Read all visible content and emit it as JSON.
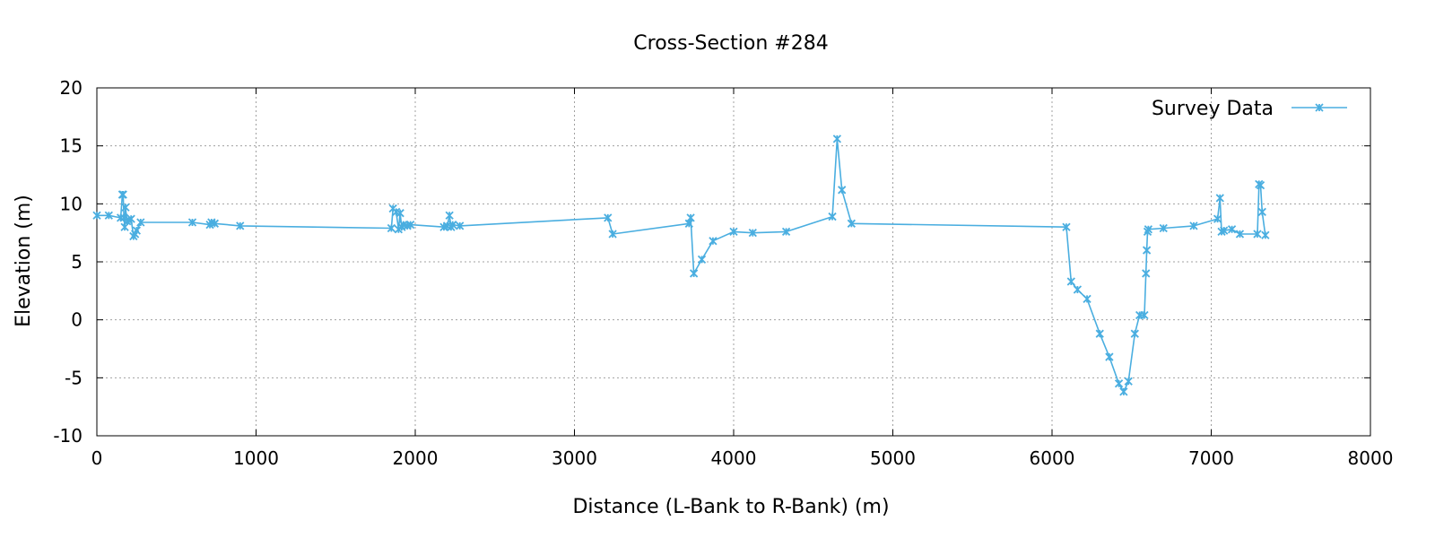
{
  "chart_data": {
    "type": "line",
    "title": "Cross-Section #284",
    "xlabel": "Distance (L-Bank to R-Bank) (m)",
    "ylabel": "Elevation (m)",
    "xlim": [
      0,
      8000
    ],
    "ylim": [
      -10,
      20
    ],
    "xticks": [
      0,
      1000,
      2000,
      3000,
      4000,
      5000,
      6000,
      7000,
      8000
    ],
    "yticks": [
      -10,
      -5,
      0,
      5,
      10,
      15,
      20
    ],
    "xtick_labels": [
      "0",
      "1000",
      "2000",
      "3000",
      "4000",
      "5000",
      "6000",
      "7000",
      "8000"
    ],
    "ytick_labels": [
      "-10",
      "-5",
      "0",
      "5",
      "10",
      "15",
      "20"
    ],
    "grid": true,
    "legend_position": "top-right",
    "line_color": "#4aaee0",
    "series": [
      {
        "name": "Survey Data",
        "x": [
          0,
          75,
          150,
          160,
          165,
          170,
          175,
          180,
          190,
          200,
          215,
          230,
          240,
          250,
          275,
          600,
          710,
          720,
          740,
          900,
          1850,
          1860,
          1880,
          1895,
          1905,
          1915,
          1925,
          1950,
          1970,
          2180,
          2200,
          2215,
          2225,
          2235,
          2280,
          3210,
          3240,
          3720,
          3730,
          3750,
          3800,
          3870,
          4000,
          4120,
          4330,
          4620,
          4650,
          4680,
          4740,
          6090,
          6120,
          6160,
          6220,
          6300,
          6360,
          6420,
          6450,
          6480,
          6520,
          6550,
          6580,
          6590,
          6595,
          6600,
          6605,
          6700,
          6890,
          7040,
          7055,
          7065,
          7080,
          7130,
          7180,
          7290,
          7300,
          7310,
          7320,
          7340
        ],
        "y": [
          9.0,
          9.0,
          8.8,
          10.8,
          10.8,
          8.8,
          8.0,
          9.7,
          8.5,
          8.6,
          8.7,
          7.2,
          7.4,
          7.7,
          8.4,
          8.4,
          8.2,
          8.4,
          8.3,
          8.1,
          7.9,
          9.6,
          9.3,
          7.8,
          9.2,
          8.0,
          8.2,
          8.1,
          8.2,
          8.0,
          8.1,
          9.0,
          8.0,
          8.2,
          8.1,
          8.8,
          7.4,
          8.3,
          8.8,
          4.0,
          5.2,
          6.8,
          7.6,
          7.5,
          7.6,
          8.9,
          15.6,
          11.2,
          8.3,
          8.0,
          3.3,
          2.6,
          1.8,
          -1.2,
          -3.2,
          -5.5,
          -6.2,
          -5.3,
          -1.2,
          0.4,
          0.4,
          4.0,
          6.0,
          7.6,
          7.8,
          7.9,
          8.1,
          8.7,
          10.5,
          7.6,
          7.7,
          7.8,
          7.4,
          7.4,
          11.7,
          11.6,
          9.3,
          7.3
        ]
      }
    ]
  }
}
